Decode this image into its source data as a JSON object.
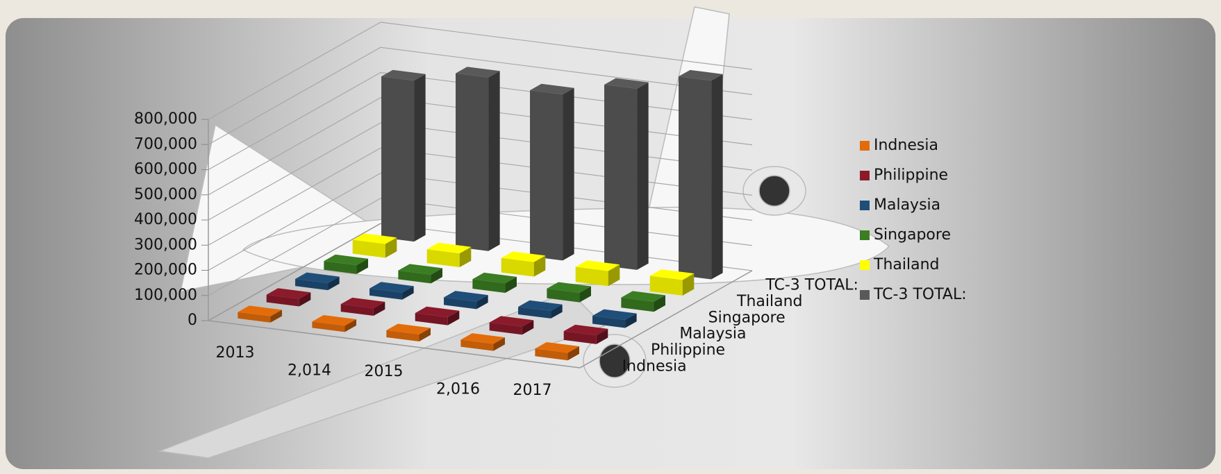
{
  "chart_data": {
    "type": "bar3d",
    "categories": [
      "2013",
      "2,014",
      "2015",
      "2,016",
      "2017"
    ],
    "series": [
      {
        "name": "Indnesia",
        "color": "#e36c0a",
        "values": [
          25000,
          25000,
          28000,
          28000,
          30000
        ]
      },
      {
        "name": "Philippine",
        "color": "#8b1a2b",
        "values": [
          30000,
          30000,
          32000,
          32000,
          35000
        ]
      },
      {
        "name": "Malaysia",
        "color": "#1f4e79",
        "values": [
          28000,
          28000,
          30000,
          30000,
          32000
        ]
      },
      {
        "name": "Singapore",
        "color": "#3a7d22",
        "values": [
          35000,
          35000,
          38000,
          38000,
          40000
        ]
      },
      {
        "name": "Thailand",
        "color": "#ffff00",
        "values": [
          55000,
          55000,
          58000,
          60000,
          62000
        ]
      },
      {
        "name": "TC-3 TOTAL:",
        "color": "#595959",
        "values": [
          640000,
          690000,
          660000,
          720000,
          790000
        ]
      }
    ],
    "ylim": [
      0,
      800000
    ],
    "yticks": [
      0,
      {
        "value": 100000,
        "label": "100,000"
      },
      {
        "value": 200000,
        "label": "200,000"
      },
      {
        "value": 300000,
        "label": "300,000"
      },
      {
        "value": 400000,
        "label": "400,000"
      },
      {
        "value": 500000,
        "label": "500,000"
      },
      {
        "value": 600000,
        "label": "600,000"
      },
      {
        "value": 700000,
        "label": "700,000"
      },
      {
        "value": 800000,
        "label": "800,000"
      }
    ],
    "grid": true,
    "legend": "right"
  }
}
